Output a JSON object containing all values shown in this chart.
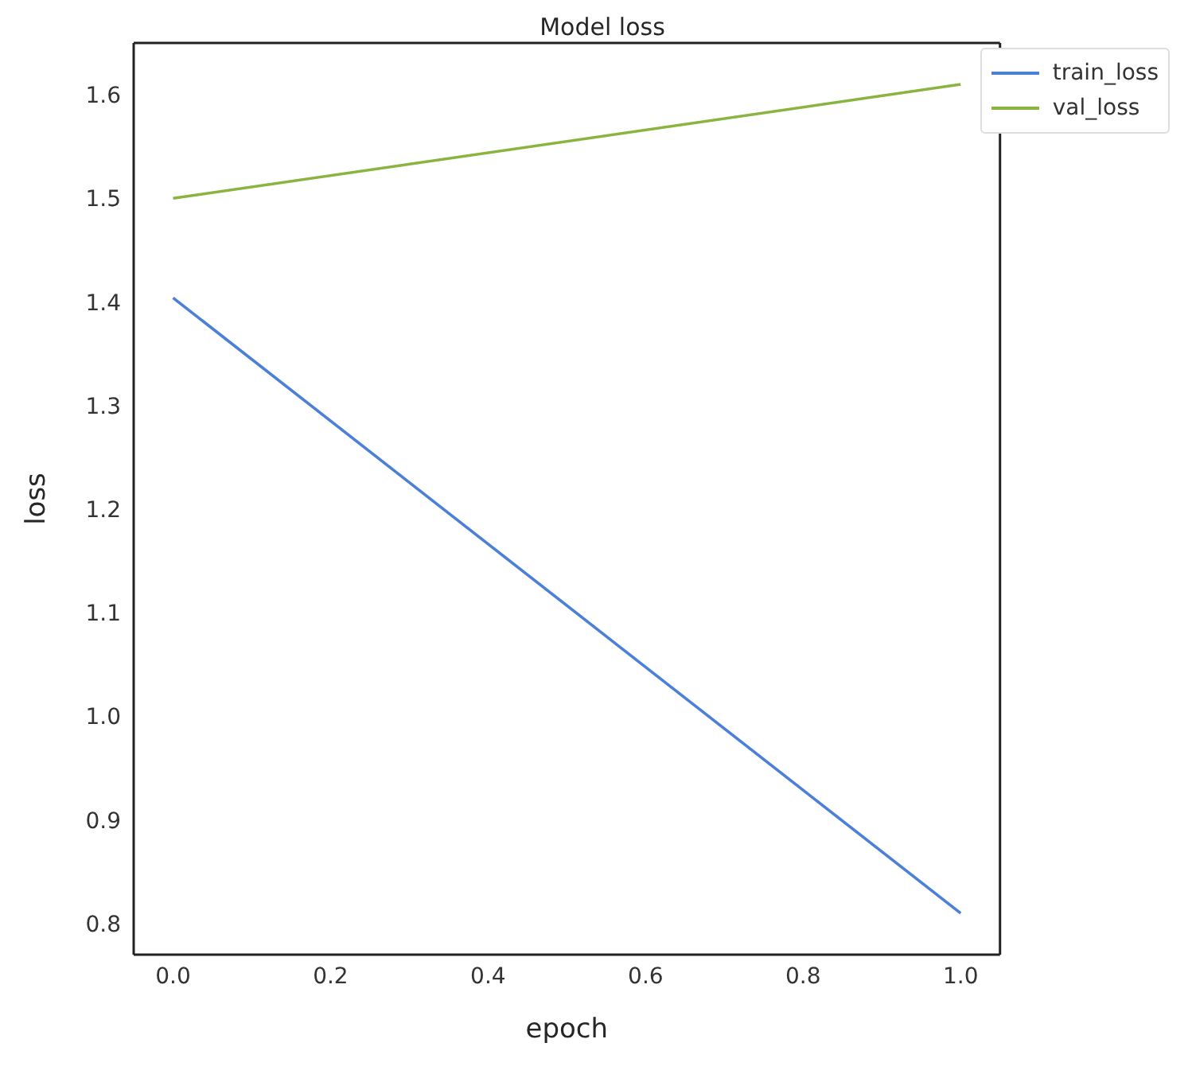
{
  "chart_data": {
    "type": "line",
    "title": "Model loss",
    "xlabel": "epoch",
    "ylabel": "loss",
    "x": [
      0,
      1
    ],
    "series": [
      {
        "name": "train_loss",
        "color": "#4c7fd8",
        "values": [
          1.404,
          0.81
        ]
      },
      {
        "name": "val_loss",
        "color": "#8ab43f",
        "values": [
          1.5,
          1.61
        ]
      }
    ],
    "xlim": [
      -0.05,
      1.05
    ],
    "xticks": [
      {
        "value": 0,
        "label": "0.0"
      },
      {
        "value": 0.2,
        "label": "0.2"
      },
      {
        "value": 0.4,
        "label": "0.4"
      },
      {
        "value": 0.6,
        "label": "0.6"
      },
      {
        "value": 0.8,
        "label": "0.8"
      },
      {
        "value": 1,
        "label": "1.0"
      }
    ],
    "ylim": [
      0.77,
      1.65
    ],
    "yticks": [
      {
        "value": 0.8,
        "label": "0.8"
      },
      {
        "value": 0.9,
        "label": "0.9"
      },
      {
        "value": 1.0,
        "label": "1.0"
      },
      {
        "value": 1.1,
        "label": "1.1"
      },
      {
        "value": 1.2,
        "label": "1.2"
      },
      {
        "value": 1.3,
        "label": "1.3"
      },
      {
        "value": 1.4,
        "label": "1.4"
      },
      {
        "value": 1.5,
        "label": "1.5"
      },
      {
        "value": 1.6,
        "label": "1.6"
      }
    ],
    "grid": false,
    "legend": "top right",
    "marker": "none",
    "line_style": "solid"
  }
}
